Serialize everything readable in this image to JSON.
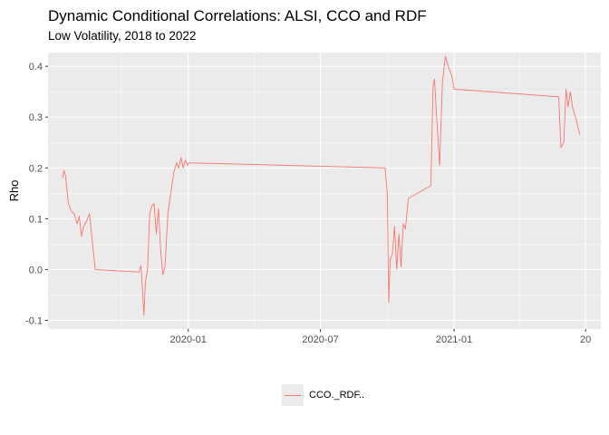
{
  "chart_data": {
    "type": "line",
    "title": "Dynamic Conditional Correlations: ALSI, CCO and RDF",
    "subtitle": "Low Volatility, 2018 to 2022",
    "ylabel": "Rho",
    "xlabel": "",
    "x_ticks": [
      "2020-01",
      "2020-07",
      "2021-01",
      "20"
    ],
    "x_tick_dates": [
      "2020-01-01",
      "2020-07-01",
      "2021-01-01",
      "2021-07-01"
    ],
    "y_ticks": [
      "-0.1",
      "0.0",
      "0.1",
      "0.2",
      "0.3",
      "0.4"
    ],
    "y_tick_values": [
      -0.1,
      0.0,
      0.1,
      0.2,
      0.3,
      0.4
    ],
    "xlim": [
      "2019-06-22",
      "2021-07-22"
    ],
    "ylim": [
      -0.117,
      0.427
    ],
    "grid": true,
    "background": "#ebebeb",
    "legend_position": "bottom",
    "series": [
      {
        "name": "CCO._RDF..",
        "color": "#f8766d",
        "points": [
          [
            "2019-07-12",
            0.18
          ],
          [
            "2019-07-14",
            0.195
          ],
          [
            "2019-07-16",
            0.185
          ],
          [
            "2019-07-20",
            0.13
          ],
          [
            "2019-07-24",
            0.115
          ],
          [
            "2019-07-28",
            0.11
          ],
          [
            "2019-08-01",
            0.09
          ],
          [
            "2019-08-04",
            0.105
          ],
          [
            "2019-08-07",
            0.065
          ],
          [
            "2019-08-10",
            0.085
          ],
          [
            "2019-08-14",
            0.095
          ],
          [
            "2019-08-18",
            0.11
          ],
          [
            "2019-08-22",
            0.055
          ],
          [
            "2019-08-26",
            0.0
          ],
          [
            "2019-10-25",
            -0.005
          ],
          [
            "2019-10-28",
            0.008
          ],
          [
            "2019-10-30",
            -0.04
          ],
          [
            "2019-11-01",
            -0.09
          ],
          [
            "2019-11-03",
            -0.025
          ],
          [
            "2019-11-06",
            0.0
          ],
          [
            "2019-11-09",
            0.11
          ],
          [
            "2019-11-12",
            0.125
          ],
          [
            "2019-11-15",
            0.13
          ],
          [
            "2019-11-18",
            0.07
          ],
          [
            "2019-11-21",
            0.12
          ],
          [
            "2019-11-24",
            0.04
          ],
          [
            "2019-11-27",
            -0.01
          ],
          [
            "2019-11-30",
            0.005
          ],
          [
            "2019-12-04",
            0.11
          ],
          [
            "2019-12-08",
            0.15
          ],
          [
            "2019-12-12",
            0.19
          ],
          [
            "2019-12-16",
            0.21
          ],
          [
            "2019-12-19",
            0.2
          ],
          [
            "2019-12-22",
            0.22
          ],
          [
            "2019-12-25",
            0.2
          ],
          [
            "2019-12-28",
            0.215
          ],
          [
            "2019-12-31",
            0.205
          ],
          [
            "2020-01-02",
            0.21
          ],
          [
            "2020-09-28",
            0.2
          ],
          [
            "2020-10-01",
            0.15
          ],
          [
            "2020-10-03",
            -0.065
          ],
          [
            "2020-10-05",
            0.02
          ],
          [
            "2020-10-08",
            0.03
          ],
          [
            "2020-10-11",
            0.085
          ],
          [
            "2020-10-14",
            0.0
          ],
          [
            "2020-10-17",
            0.07
          ],
          [
            "2020-10-20",
            0.005
          ],
          [
            "2020-10-23",
            0.09
          ],
          [
            "2020-10-26",
            0.08
          ],
          [
            "2020-10-30",
            0.14
          ],
          [
            "2020-11-30",
            0.165
          ],
          [
            "2020-12-03",
            0.36
          ],
          [
            "2020-12-05",
            0.375
          ],
          [
            "2020-12-08",
            0.3
          ],
          [
            "2020-12-12",
            0.205
          ],
          [
            "2020-12-16",
            0.37
          ],
          [
            "2020-12-20",
            0.42
          ],
          [
            "2020-12-24",
            0.4
          ],
          [
            "2020-12-29",
            0.38
          ],
          [
            "2021-01-01",
            0.355
          ],
          [
            "2021-05-25",
            0.34
          ],
          [
            "2021-05-28",
            0.24
          ],
          [
            "2021-06-01",
            0.25
          ],
          [
            "2021-06-04",
            0.355
          ],
          [
            "2021-06-07",
            0.32
          ],
          [
            "2021-06-10",
            0.35
          ],
          [
            "2021-06-13",
            0.32
          ],
          [
            "2021-06-16",
            0.305
          ],
          [
            "2021-06-19",
            0.29
          ],
          [
            "2021-06-23",
            0.265
          ]
        ]
      }
    ]
  }
}
